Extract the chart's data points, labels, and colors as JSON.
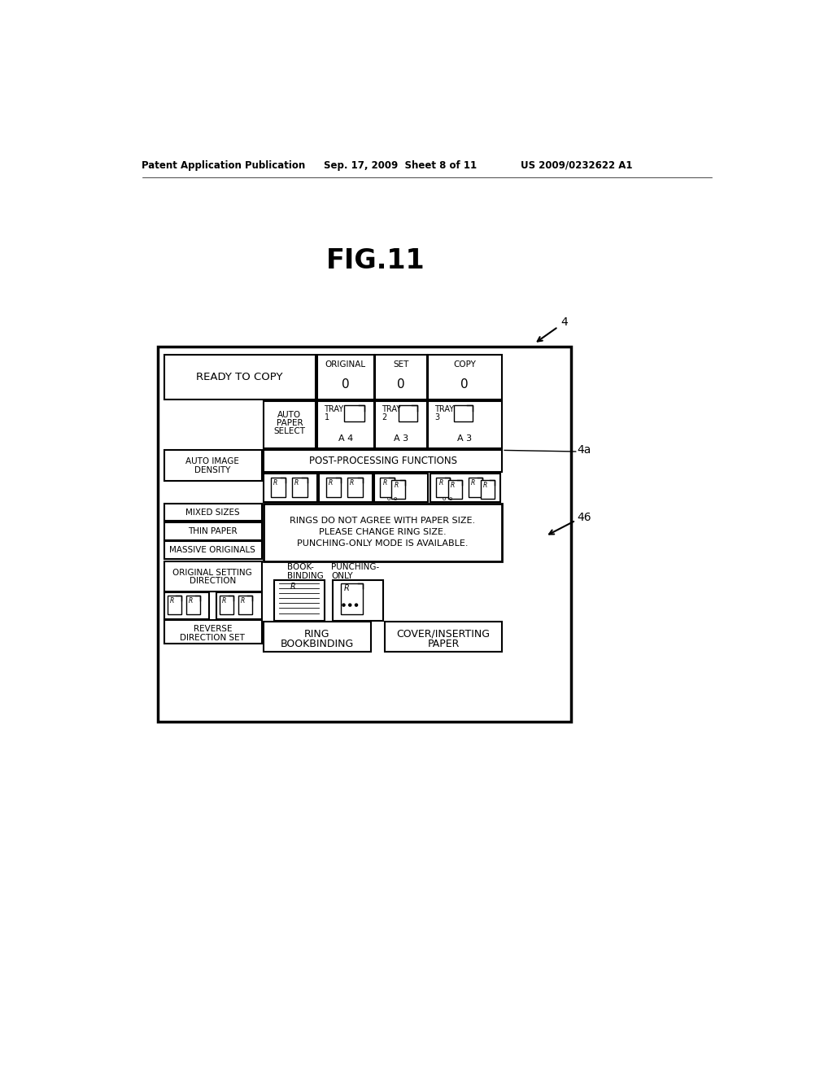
{
  "bg_color": "#ffffff",
  "header_text1": "Patent Application Publication",
  "header_text2": "Sep. 17, 2009  Sheet 8 of 11",
  "header_text3": "US 2009/0232622 A1",
  "fig_title": "FIG.11"
}
